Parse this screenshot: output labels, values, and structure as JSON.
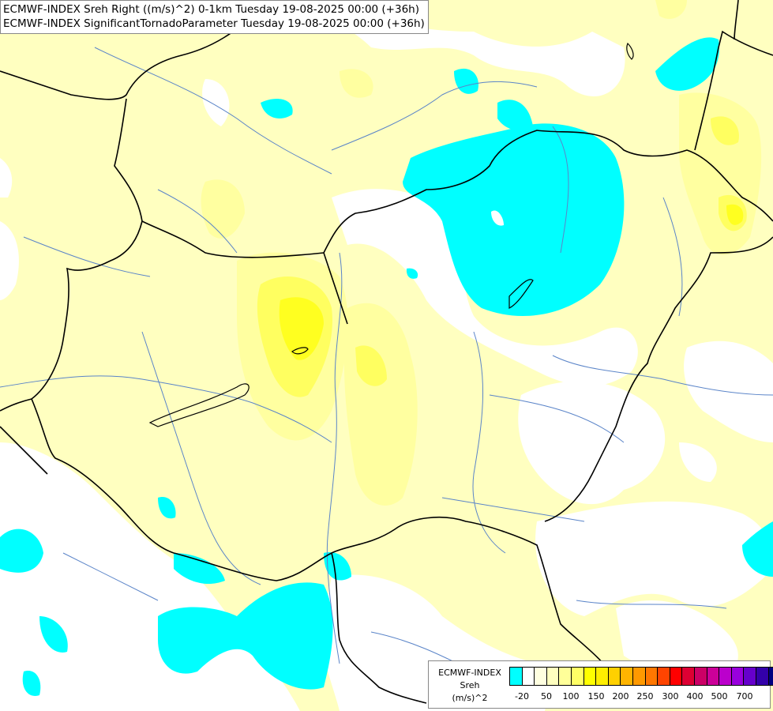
{
  "title_lines": [
    "ECMWF-INDEX Sreh Right ((m/s)^2) 0-1km Tuesday 19-08-2025 00:00 (+36h)",
    "ECMWF-INDEX SignificantTornadoParameter Tuesday 19-08-2025 00:00 (+36h)"
  ],
  "legend": {
    "title_lines": [
      "ECMWF-INDEX",
      "Sreh",
      "(m/s)^2"
    ],
    "ticks": [
      "-20",
      "50",
      "100",
      "150",
      "200",
      "250",
      "300",
      "400",
      "500",
      "700"
    ],
    "colors": [
      "#00ffff",
      "#ffffff",
      "#ffffe0",
      "#ffffbf",
      "#ffff99",
      "#ffff66",
      "#ffff00",
      "#ffee00",
      "#ffd000",
      "#ffb400",
      "#ff9900",
      "#ff7700",
      "#ff4400",
      "#ff0000",
      "#dd0033",
      "#cc0066",
      "#cc0099",
      "#bb00cc",
      "#9900dd",
      "#6600cc",
      "#3300aa",
      "#000080"
    ]
  },
  "colors": {
    "pale_yellow": "#ffffc0",
    "light_yellow": "#ffffa0",
    "yellow": "#ffff60",
    "bright_yellow": "#ffff20",
    "cyan": "#00ffff",
    "border": "#000000",
    "river": "#5a84c8"
  }
}
